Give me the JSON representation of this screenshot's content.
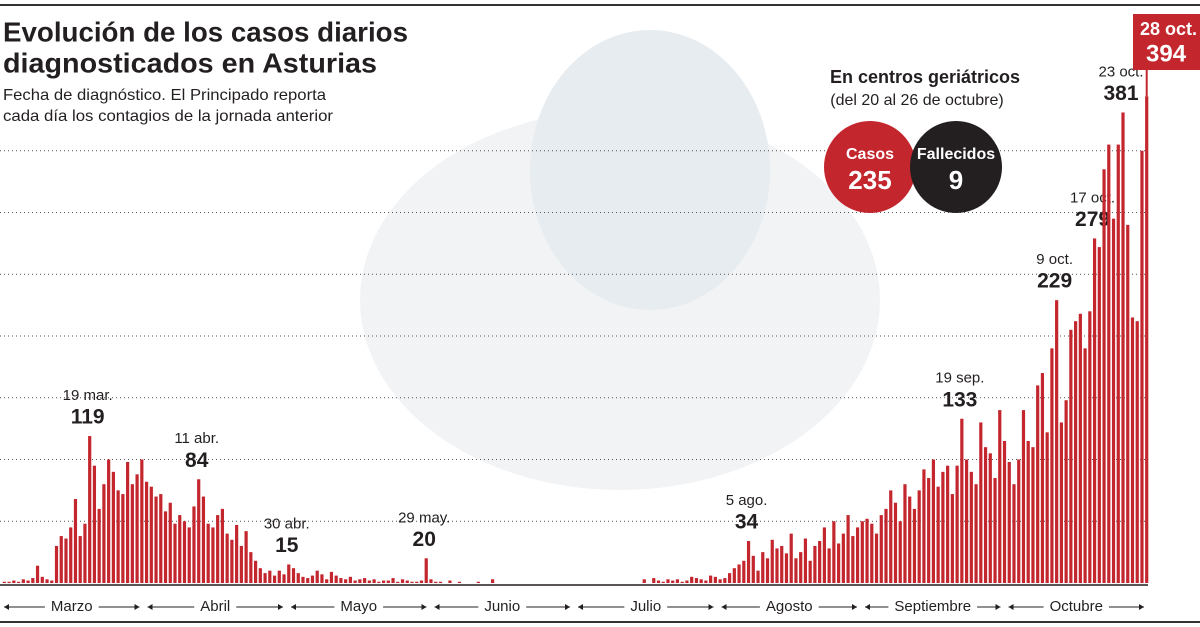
{
  "chart_data": {
    "type": "bar",
    "title_lines": [
      "Evolución de los casos diarios",
      "diagnosticados en Asturias"
    ],
    "subtitle_lines": [
      "Fecha de diagnóstico. El Principado reporta",
      "cada día los contagios de la jornada anterior"
    ],
    "color": "#c4262e",
    "ylim": [
      0,
      400
    ],
    "yticks": [
      50,
      100,
      150,
      200,
      250,
      300,
      350
    ],
    "grid": true,
    "months": [
      "Marzo",
      "Abril",
      "Mayo",
      "Junio",
      "Julio",
      "Agosto",
      "Septiembre",
      "Octubre"
    ],
    "categories": [
      null,
      null,
      null,
      null,
      null,
      null,
      null,
      null,
      null,
      null,
      null,
      null,
      null,
      null,
      null,
      null,
      null,
      null,
      "19 mar.",
      null,
      null,
      null,
      null,
      null,
      null,
      null,
      null,
      null,
      null,
      null,
      null,
      null,
      null,
      null,
      null,
      null,
      null,
      null,
      null,
      null,
      null,
      "11 abr.",
      null,
      null,
      null,
      null,
      null,
      null,
      null,
      null,
      null,
      null,
      null,
      null,
      null,
      null,
      null,
      null,
      null,
      null,
      "30 abr.",
      null,
      null,
      null,
      null,
      null,
      null,
      null,
      null,
      null,
      null,
      null,
      null,
      null,
      null,
      null,
      null,
      null,
      null,
      null,
      null,
      null,
      null,
      null,
      null,
      null,
      null,
      null,
      null,
      "29 may.",
      null,
      null,
      null,
      null,
      null,
      null,
      null,
      null,
      null,
      null,
      null,
      null,
      null,
      null,
      null,
      null,
      null,
      null,
      null,
      null,
      null,
      null,
      null,
      null,
      null,
      null,
      null,
      null,
      null,
      null,
      null,
      null,
      null,
      null,
      null,
      null,
      null,
      null,
      null,
      null,
      null,
      null,
      null,
      null,
      null,
      null,
      null,
      null,
      null,
      null,
      null,
      null,
      null,
      null,
      null,
      null,
      null,
      null,
      null,
      null,
      null,
      null,
      null,
      null,
      null,
      null,
      null,
      "5 ago.",
      null,
      null,
      null,
      null,
      null,
      null,
      null,
      null,
      null,
      null,
      null,
      null,
      null,
      null,
      null,
      null,
      null,
      null,
      null,
      null,
      null,
      null,
      null,
      null,
      null,
      null,
      null,
      null,
      null,
      null,
      null,
      null,
      null,
      null,
      null,
      null,
      null,
      null,
      null,
      null,
      null,
      null,
      null,
      null,
      "19 sep.",
      null,
      null,
      null,
      null,
      null,
      null,
      null,
      null,
      null,
      null,
      null,
      null,
      null,
      null,
      null,
      null,
      null,
      null,
      null,
      "9 oct.",
      null,
      null,
      null,
      null,
      null,
      null,
      null,
      "17 oct.",
      null,
      null,
      null,
      null,
      null,
      "23 oct.",
      null,
      null,
      null,
      null,
      "28 oct."
    ],
    "values": [
      1,
      1,
      2,
      1,
      3,
      2,
      4,
      14,
      5,
      3,
      2,
      30,
      38,
      36,
      45,
      68,
      38,
      48,
      119,
      95,
      60,
      80,
      100,
      90,
      75,
      72,
      98,
      80,
      88,
      100,
      82,
      78,
      70,
      72,
      58,
      65,
      48,
      55,
      50,
      45,
      62,
      84,
      70,
      48,
      45,
      55,
      60,
      40,
      35,
      47,
      30,
      42,
      25,
      18,
      12,
      8,
      10,
      6,
      10,
      7,
      15,
      12,
      8,
      5,
      4,
      6,
      10,
      7,
      3,
      9,
      6,
      4,
      3,
      5,
      2,
      3,
      4,
      2,
      3,
      1,
      2,
      2,
      4,
      1,
      3,
      2,
      1,
      1,
      2,
      20,
      3,
      1,
      1,
      0,
      2,
      0,
      1,
      0,
      0,
      0,
      1,
      0,
      0,
      3,
      0,
      0,
      0,
      0,
      0,
      0,
      0,
      0,
      0,
      0,
      0,
      0,
      0,
      0,
      0,
      0,
      0,
      0,
      0,
      0,
      0,
      0,
      0,
      0,
      0,
      0,
      0,
      0,
      0,
      0,
      0,
      3,
      0,
      4,
      2,
      1,
      3,
      2,
      3,
      1,
      2,
      5,
      4,
      3,
      2,
      6,
      5,
      3,
      4,
      8,
      12,
      15,
      18,
      34,
      22,
      10,
      25,
      20,
      35,
      28,
      30,
      24,
      40,
      20,
      25,
      36,
      18,
      30,
      34,
      45,
      28,
      50,
      32,
      40,
      55,
      38,
      45,
      50,
      52,
      48,
      40,
      55,
      60,
      75,
      65,
      50,
      80,
      70,
      60,
      75,
      92,
      85,
      100,
      78,
      90,
      95,
      72,
      95,
      133,
      100,
      90,
      80,
      130,
      110,
      105,
      85,
      140,
      115,
      98,
      80,
      100,
      140,
      115,
      110,
      160,
      170,
      122,
      190,
      229,
      130,
      148,
      205,
      212,
      218,
      190,
      220,
      279,
      272,
      335,
      355,
      295,
      355,
      381,
      290,
      215,
      212,
      350,
      394
    ]
  },
  "panel": {
    "title": "En centros geriátricos",
    "subtitle": "(del 20 al 26 de octubre)",
    "items": [
      {
        "label": "Casos",
        "value": 235,
        "color": "#c4262e"
      },
      {
        "label": "Fallecidos",
        "value": 9,
        "color": "#231f20"
      }
    ]
  }
}
